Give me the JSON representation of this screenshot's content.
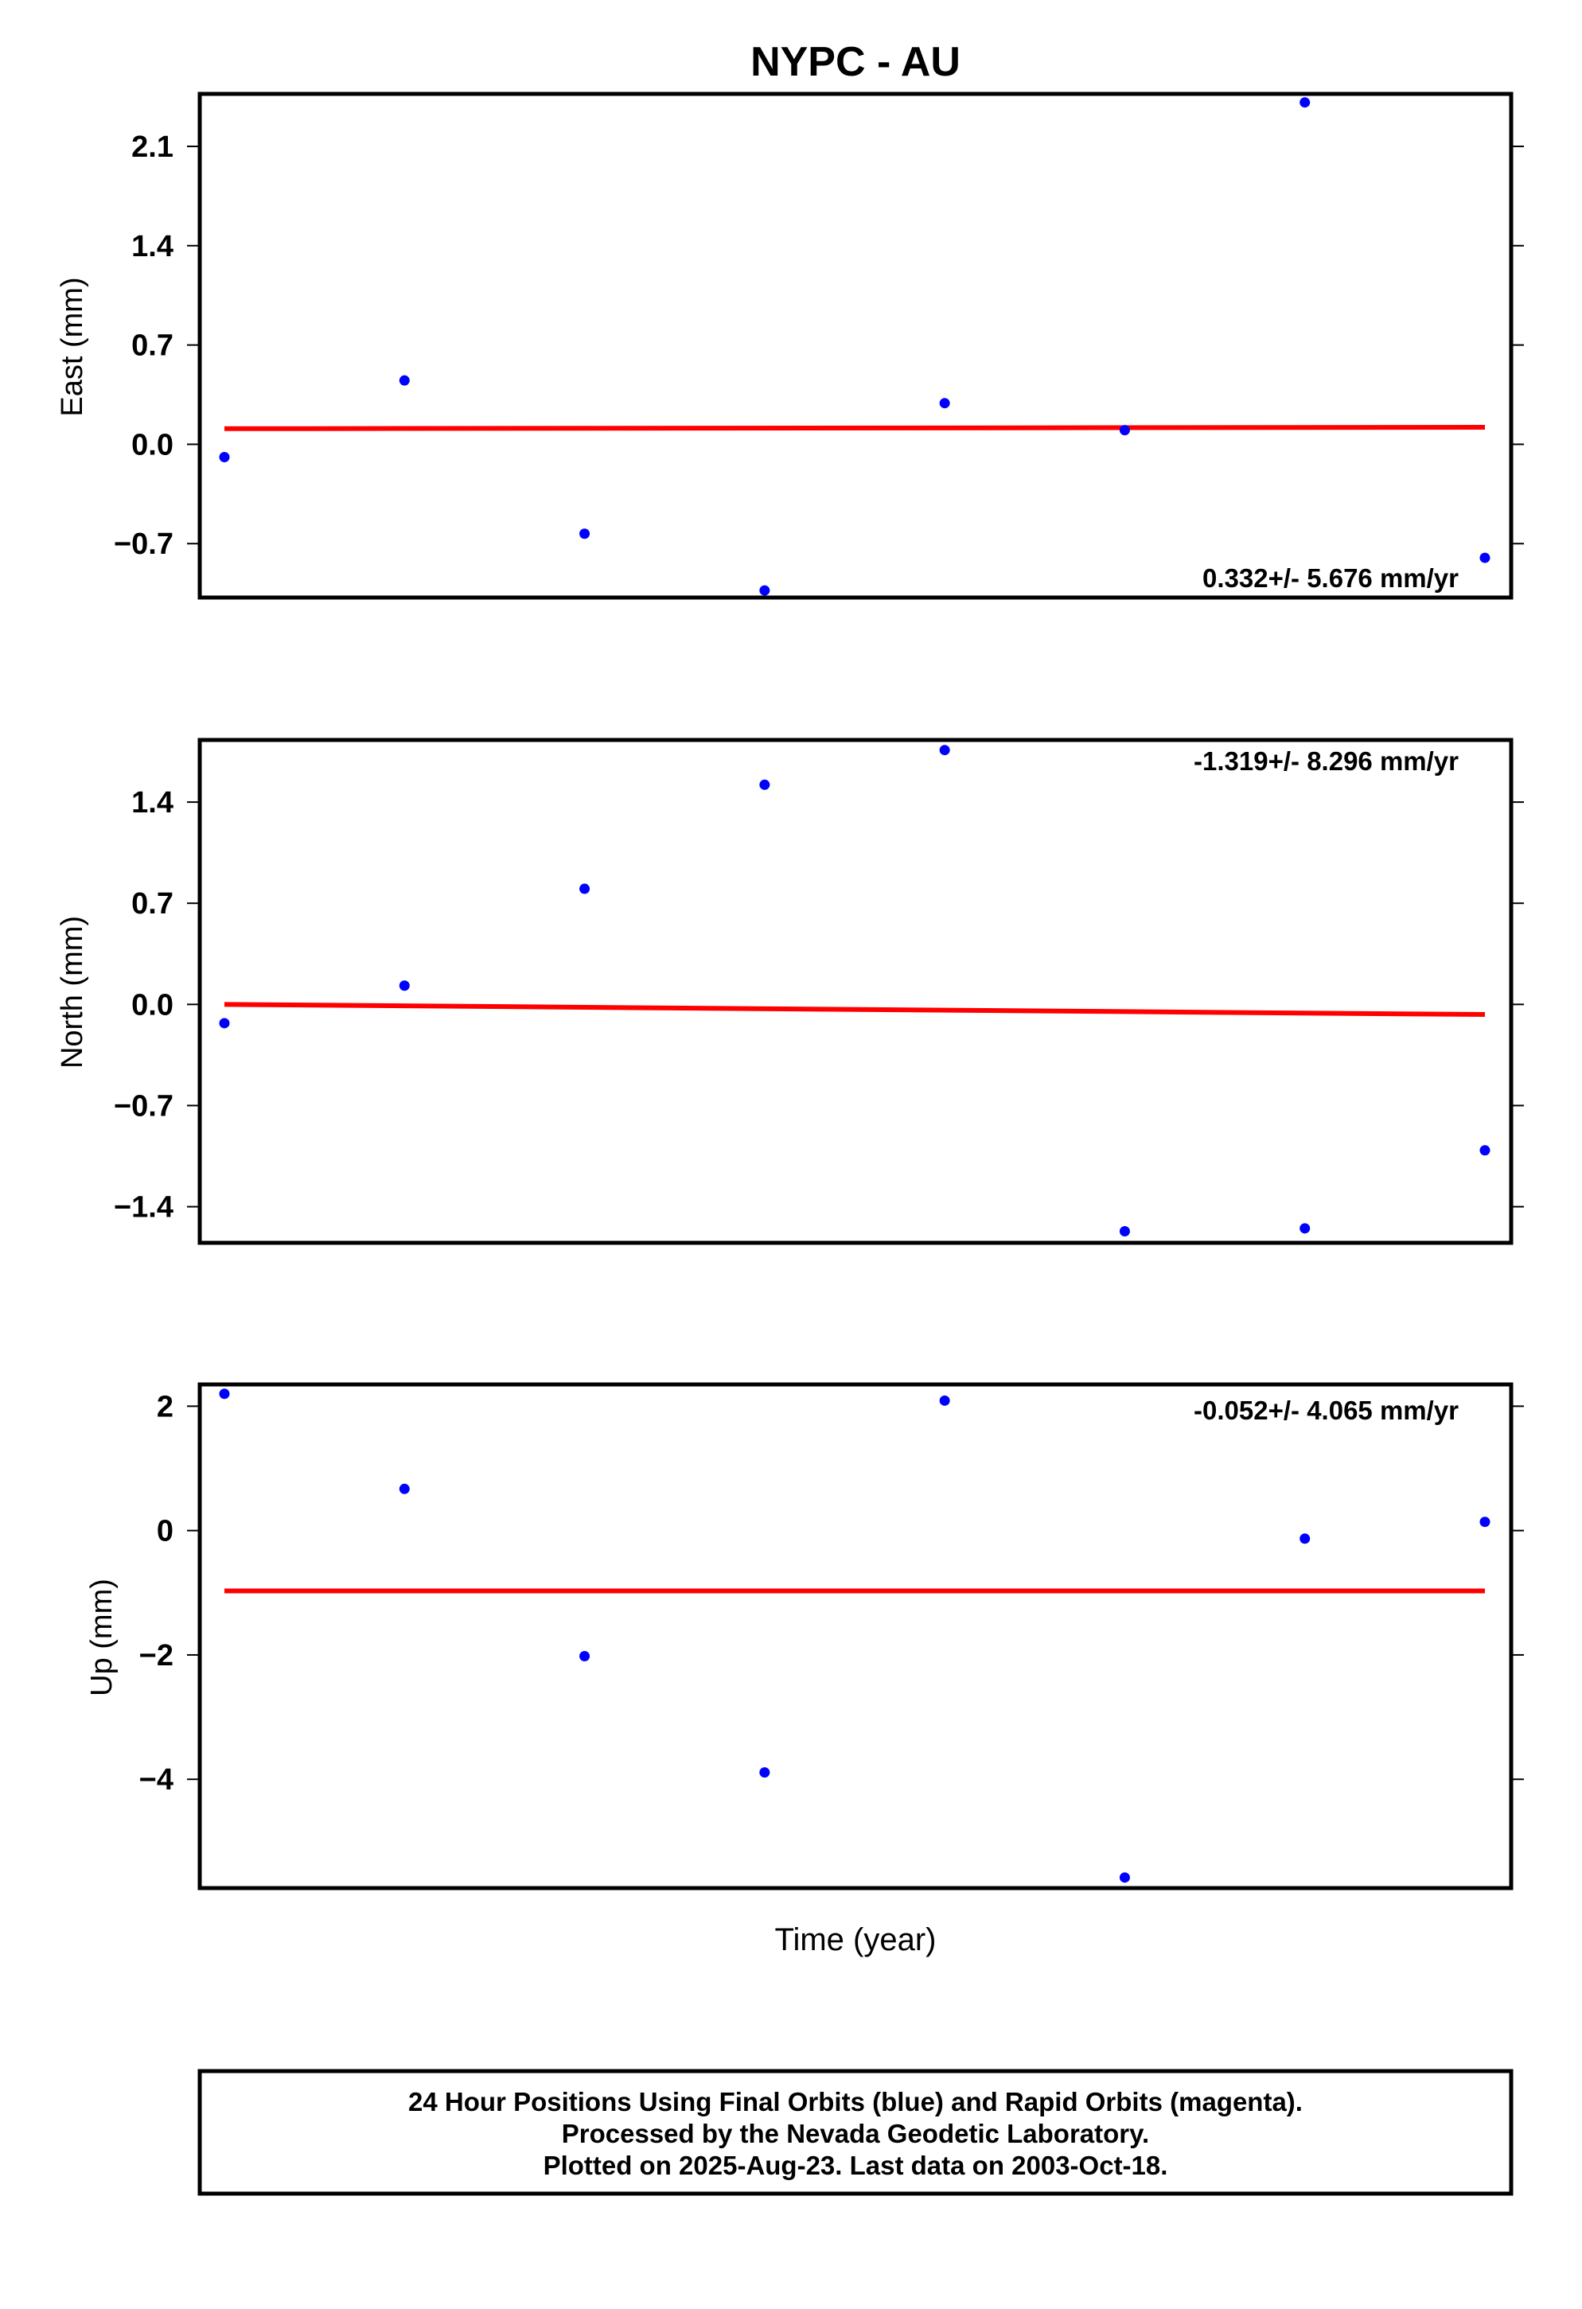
{
  "title": "NYPC - AU",
  "xlabel": "Time (year)",
  "footer": {
    "line1": "24 Hour Positions Using Final Orbits (blue) and Rapid Orbits (magenta).",
    "line2": "Processed by the Nevada Geodetic Laboratory.",
    "line3": "Plotted on 2025-Aug-23. Last data on 2003-Oct-18."
  },
  "colors": {
    "points": "#0000ff",
    "trend": "#ff0000",
    "frame": "#000000"
  },
  "chart_data": [
    {
      "type": "scatter",
      "name": "east",
      "ylabel": "East (mm)",
      "ylim": [
        -1.08,
        2.47
      ],
      "yticks": [
        2.1,
        1.4,
        0.7,
        0.0,
        -0.7
      ],
      "ytick_labels": [
        "2.1",
        "1.4",
        "0.7",
        "0.0",
        "−0.7"
      ],
      "x": [
        1,
        2,
        3,
        4,
        5,
        6,
        7,
        8
      ],
      "y": [
        -0.09,
        0.45,
        -0.63,
        -1.03,
        0.29,
        0.1,
        2.41,
        -0.8
      ],
      "trend": {
        "y_start": 0.11,
        "y_end": 0.12
      },
      "rate_label": "0.332+/- 5.676 mm/yr",
      "rate_position": "bottom-right"
    },
    {
      "type": "scatter",
      "name": "north",
      "ylabel": "North (mm)",
      "ylim": [
        -1.65,
        1.83
      ],
      "yticks": [
        1.4,
        0.7,
        0.0,
        -0.7,
        -1.4
      ],
      "ytick_labels": [
        "1.4",
        "0.7",
        "0.0",
        "−0.7",
        "−1.4"
      ],
      "x": [
        1,
        2,
        3,
        4,
        5,
        6,
        7,
        8
      ],
      "y": [
        -0.13,
        0.13,
        0.8,
        1.52,
        1.76,
        -1.57,
        -1.55,
        -1.01
      ],
      "trend": {
        "y_start": 0.0,
        "y_end": -0.07
      },
      "rate_label": "-1.319+/- 8.296 mm/yr",
      "rate_position": "top-right"
    },
    {
      "type": "scatter",
      "name": "up",
      "ylabel": "Up (mm)",
      "ylim": [
        -5.75,
        2.35
      ],
      "yticks": [
        2,
        0,
        -2,
        -4
      ],
      "ytick_labels": [
        "2",
        "0",
        "−2",
        "−4"
      ],
      "x": [
        1,
        2,
        3,
        4,
        5,
        6,
        7,
        8
      ],
      "y": [
        2.2,
        0.67,
        -2.02,
        -3.89,
        2.09,
        -5.58,
        -0.13,
        0.14
      ],
      "trend": {
        "y_start": -0.97,
        "y_end": -0.97
      },
      "rate_label": "-0.052+/- 4.065 mm/yr",
      "rate_position": "top-right"
    }
  ]
}
